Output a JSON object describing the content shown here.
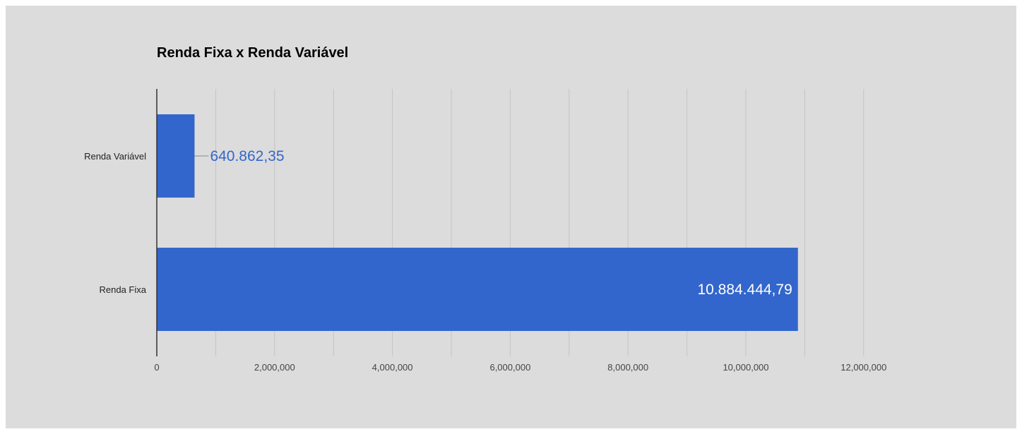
{
  "chart_data": {
    "type": "bar",
    "orientation": "horizontal",
    "title": "Renda Fixa x Renda Variável",
    "xlabel": "",
    "ylabel": "",
    "categories": [
      "Renda Variável",
      "Renda Fixa"
    ],
    "values": [
      640862.35,
      10884444.79
    ],
    "data_labels": [
      "640.862,35",
      "10.884.444,79"
    ],
    "xlim": [
      0,
      14000000
    ],
    "x_ticks": [
      0,
      2000000,
      4000000,
      6000000,
      8000000,
      10000000,
      12000000
    ],
    "x_tick_labels": [
      "0",
      "2,000,000",
      "4,000,000",
      "6,000,000",
      "8,000,000",
      "10,000,000",
      "12,000,000"
    ],
    "gridlines": true,
    "legend": "none",
    "colors": {
      "bar": "#3366cc",
      "background": "#dcdcdc",
      "gridline": "#c4c4c4",
      "axis": "#333333",
      "label_outside": "#3366cc",
      "label_inside": "#ffffff",
      "leader": "#888888"
    }
  }
}
